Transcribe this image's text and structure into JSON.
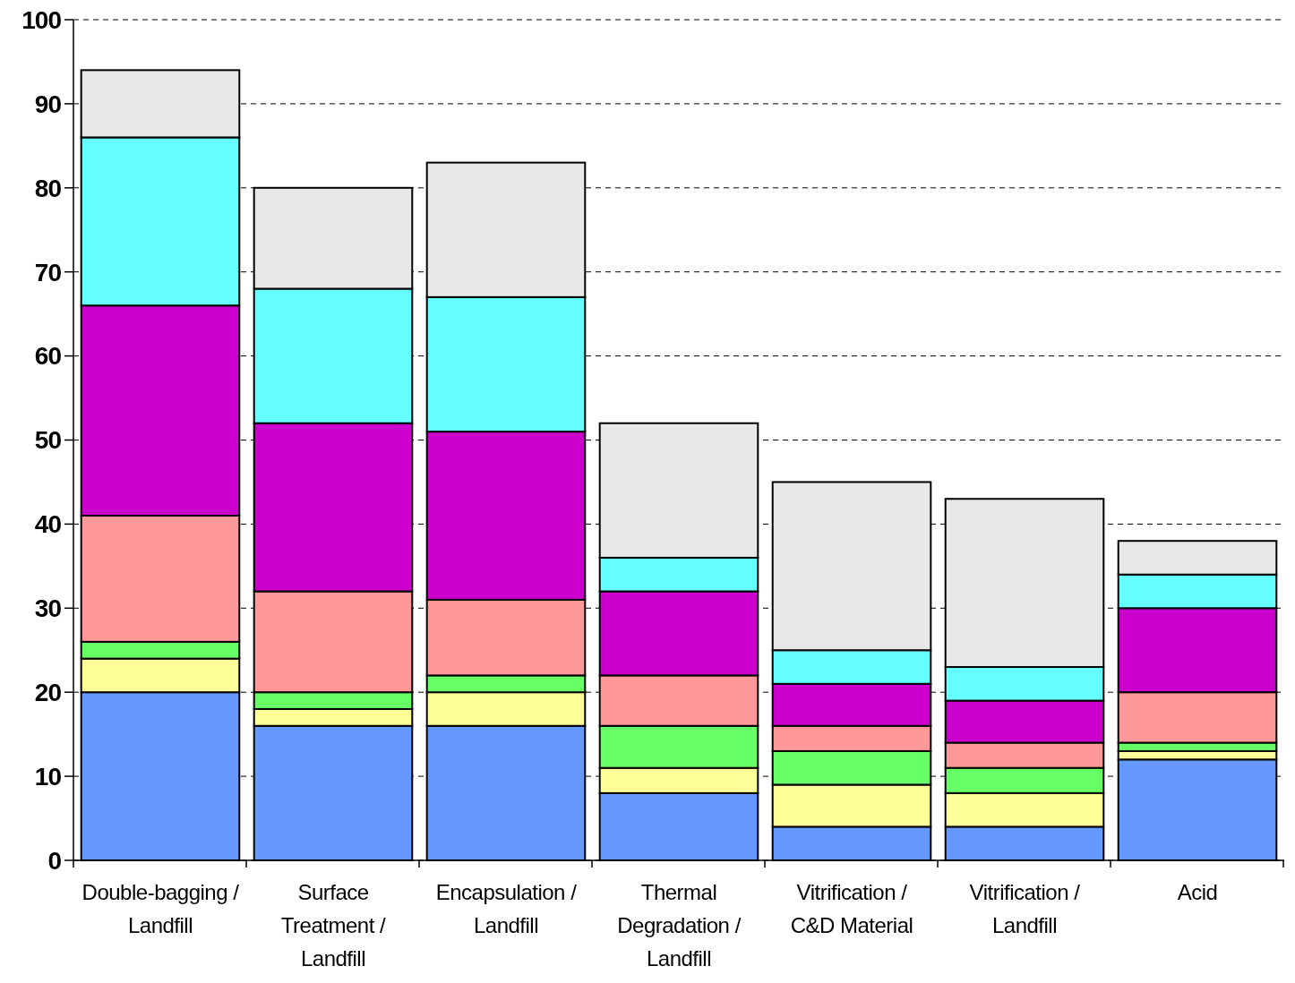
{
  "chart_data": {
    "type": "bar",
    "stacked": true,
    "categories": [
      "Double-bagging / Landfill",
      "Surface Treatment / Landfill",
      "Encapsulation / Landfill",
      "Thermal Degradation / Landfill",
      "Vitrification / C&D Material",
      "Vitrification / Landfill",
      "Acid"
    ],
    "series": [
      {
        "color": "#6699ff",
        "values": [
          20,
          16,
          16,
          8,
          4,
          4,
          12
        ]
      },
      {
        "color": "#ffff99",
        "values": [
          4,
          2,
          4,
          3,
          5,
          4,
          1
        ]
      },
      {
        "color": "#66ff66",
        "values": [
          2,
          2,
          2,
          5,
          4,
          3,
          1
        ]
      },
      {
        "color": "#ff9999",
        "values": [
          15,
          12,
          9,
          6,
          3,
          3,
          6
        ]
      },
      {
        "color": "#cc00cc",
        "values": [
          25,
          20,
          20,
          10,
          5,
          5,
          10
        ]
      },
      {
        "color": "#66ffff",
        "values": [
          20,
          16,
          16,
          4,
          4,
          4,
          4
        ]
      },
      {
        "color": "#e8e8e8",
        "values": [
          8,
          12,
          16,
          16,
          20,
          20,
          4
        ]
      }
    ],
    "ylim": [
      0,
      100
    ],
    "yticks": [
      0,
      10,
      20,
      30,
      40,
      50,
      60,
      70,
      80,
      90,
      100
    ],
    "grid": "y"
  }
}
